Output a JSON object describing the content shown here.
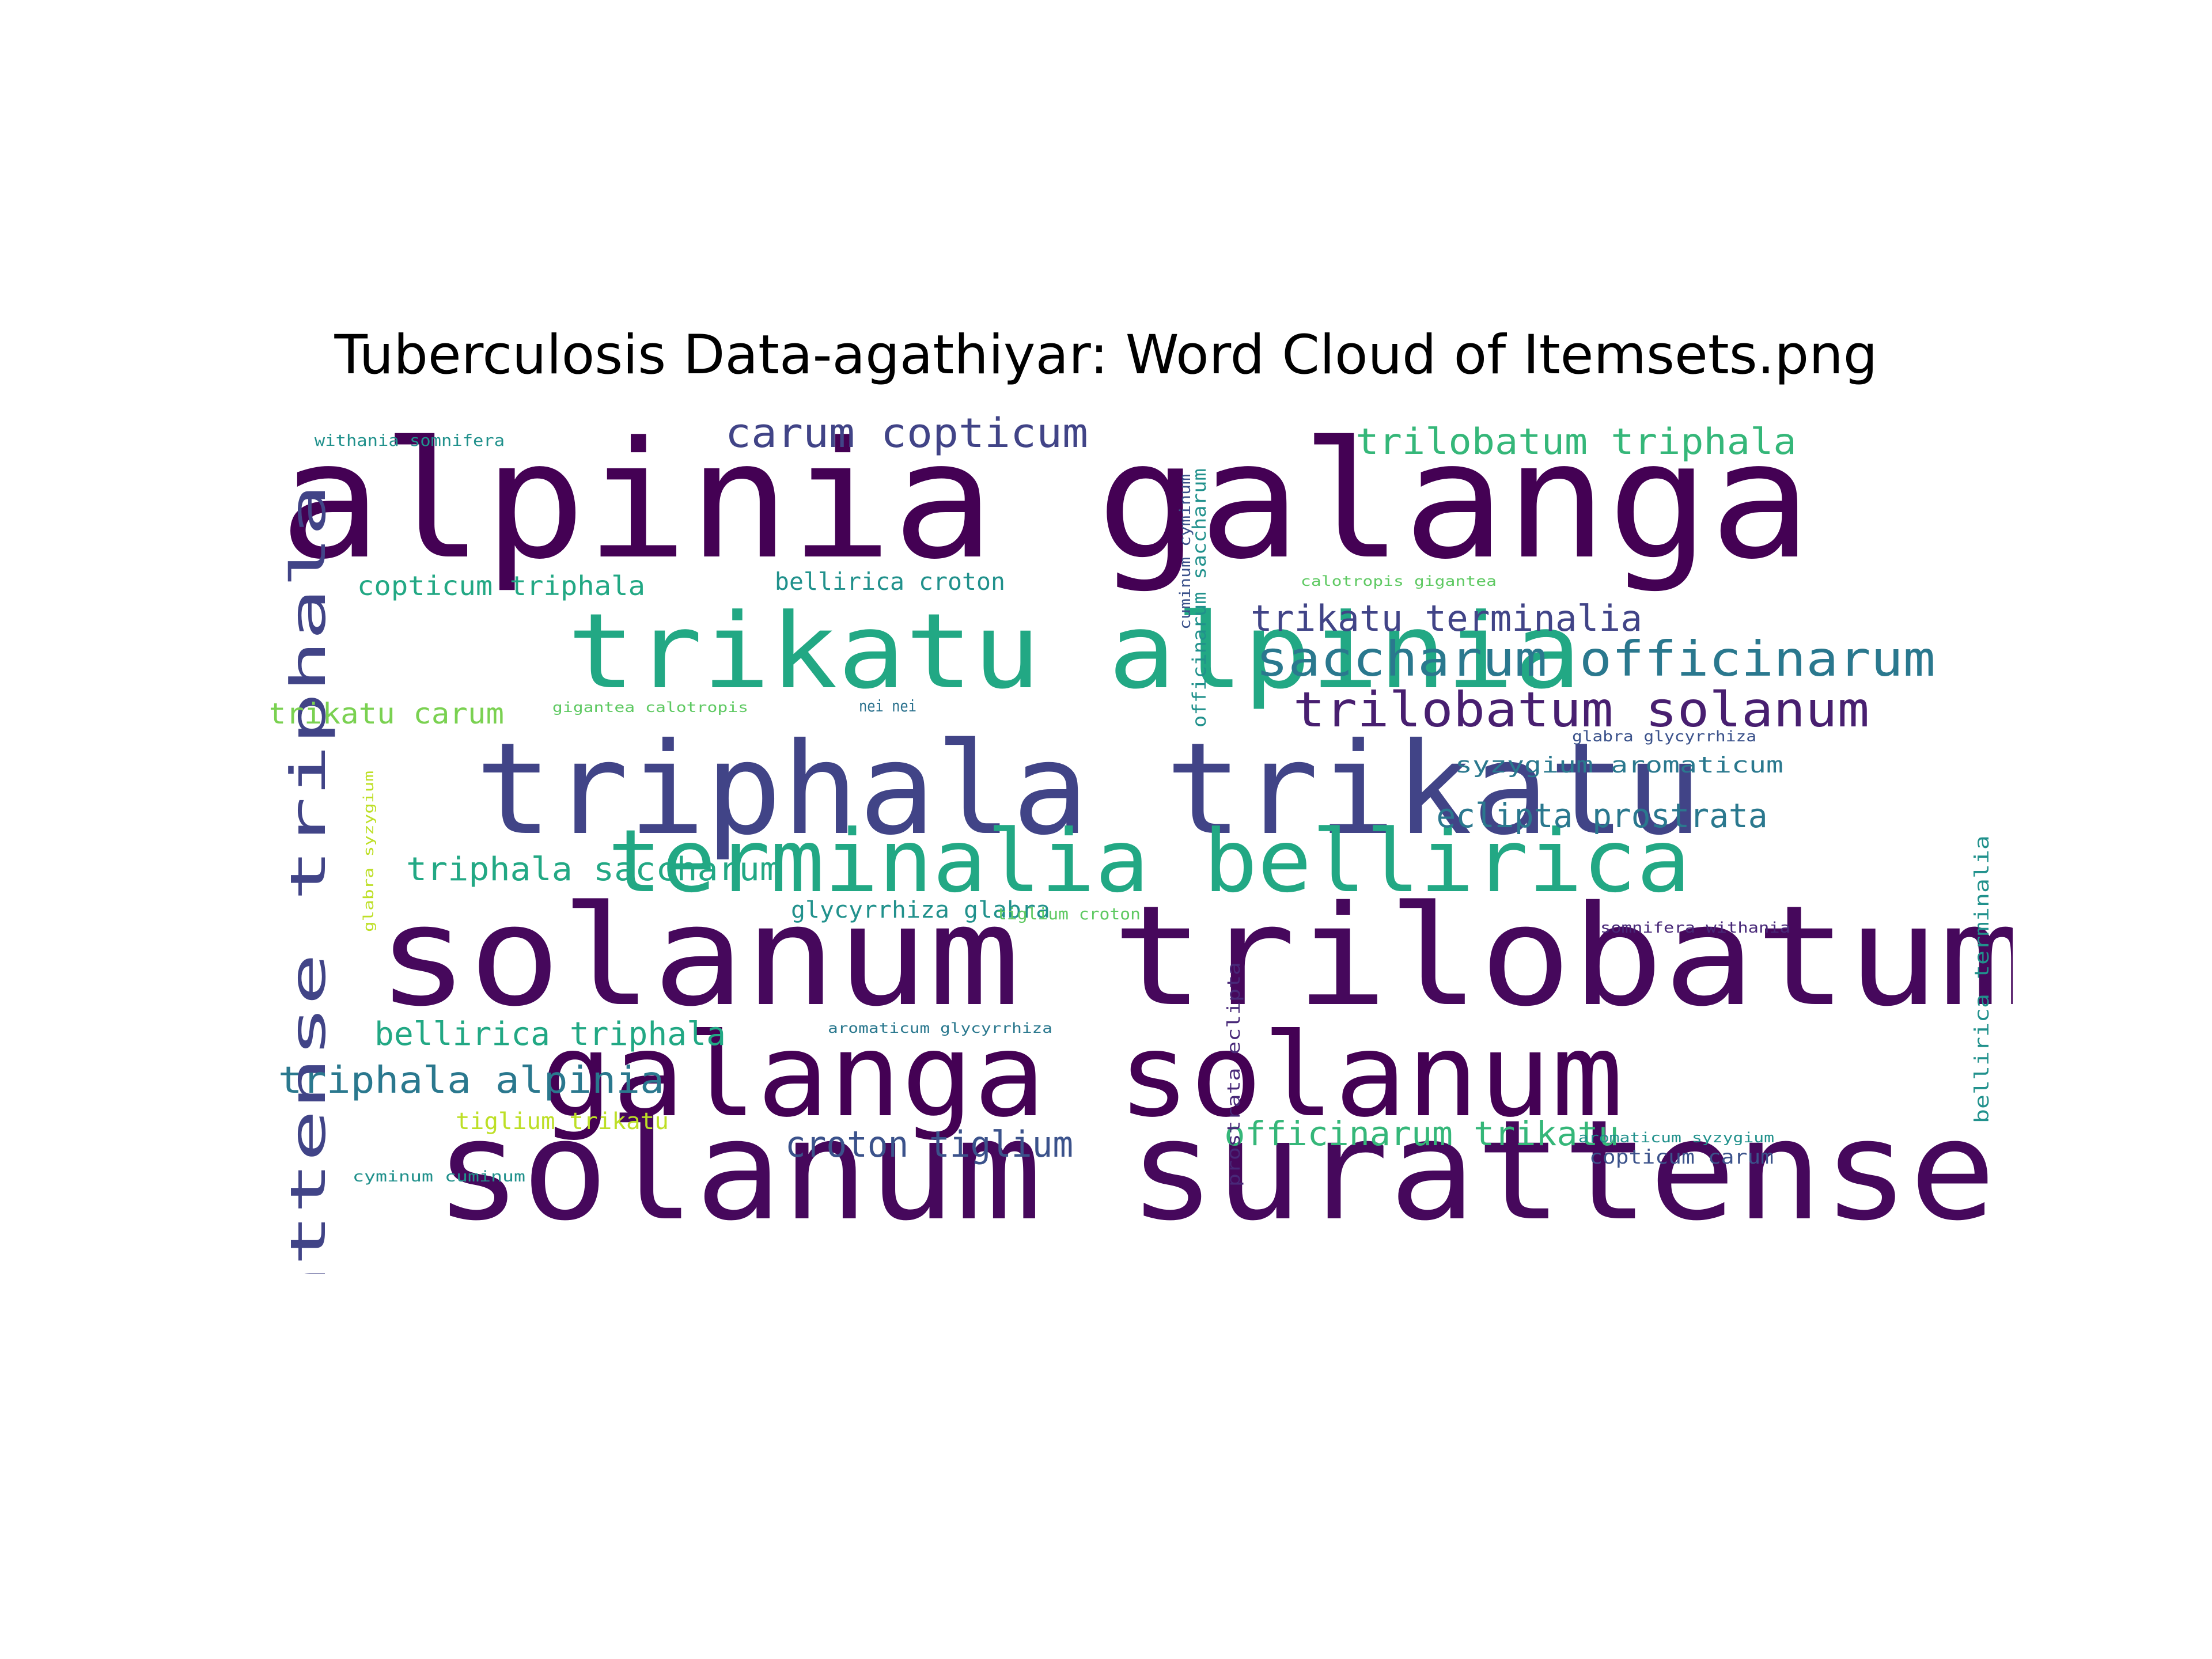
{
  "title": "Tuberculosis Data-agathiyar: Word Cloud of Itemsets.png",
  "words": [
    {
      "text": "alpinia galanga",
      "color": "#440154"
    },
    {
      "text": "solanum trilobatum",
      "color": "#46085c"
    },
    {
      "text": "solanum surattense",
      "color": "#46085c"
    },
    {
      "text": "triphala trikatu",
      "color": "#414487"
    },
    {
      "text": "galanga solanum",
      "color": "#440154"
    },
    {
      "text": "trikatu alpinia",
      "color": "#22a884"
    },
    {
      "text": "terminalia bellirica",
      "color": "#22a884"
    },
    {
      "text": "saccharum officinarum",
      "color": "#2a788e"
    },
    {
      "text": "trilobatum solanum",
      "color": "#481f70"
    },
    {
      "text": "surattense triphala",
      "color": "#414487"
    },
    {
      "text": "carum copticum",
      "color": "#414487"
    },
    {
      "text": "trilobatum triphala",
      "color": "#35b779"
    },
    {
      "text": "trikatu terminalia",
      "color": "#414487"
    },
    {
      "text": "eclipta prostrata",
      "color": "#2a788e"
    },
    {
      "text": "triphala alpinia",
      "color": "#2a788e"
    },
    {
      "text": "croton tiglium",
      "color": "#3b528b"
    },
    {
      "text": "officinarum trikatu",
      "color": "#35b779"
    },
    {
      "text": "copticum triphala",
      "color": "#22a884"
    },
    {
      "text": "triphala saccharum",
      "color": "#22a884"
    },
    {
      "text": "bellirica triphala",
      "color": "#22a884"
    },
    {
      "text": "trikatu carum",
      "color": "#7ad151"
    },
    {
      "text": "bellirica croton",
      "color": "#21918c"
    },
    {
      "text": "glycyrrhiza glabra",
      "color": "#21918c"
    },
    {
      "text": "tiglium trikatu",
      "color": "#bddf26"
    },
    {
      "text": "syzygium aromaticum",
      "color": "#2a788e"
    },
    {
      "text": "copticum carum",
      "color": "#3b528b"
    },
    {
      "text": "bellirica terminalia",
      "color": "#21918c"
    },
    {
      "text": "officinarum saccharum",
      "color": "#21918c"
    },
    {
      "text": "prostrata eclipta",
      "color": "#482878"
    },
    {
      "text": "withania somnifera",
      "color": "#21918c"
    },
    {
      "text": "calotropis gigantea",
      "color": "#5ec962"
    },
    {
      "text": "gigantea calotropis",
      "color": "#5ec962"
    },
    {
      "text": "nei nei",
      "color": "#2c728e"
    },
    {
      "text": "glabra glycyrrhiza",
      "color": "#3b528b"
    },
    {
      "text": "glabra syzygium",
      "color": "#bddf26"
    },
    {
      "text": "tiglium croton",
      "color": "#5ec962"
    },
    {
      "text": "somnifera withania",
      "color": "#482878"
    },
    {
      "text": "aromaticum glycyrrhiza",
      "color": "#2a788e"
    },
    {
      "text": "cyminum cuminum",
      "color": "#21918c"
    },
    {
      "text": "cuminum cyminum",
      "color": "#3b528b"
    },
    {
      "text": "aromaticum syzygium",
      "color": "#21918c"
    }
  ]
}
